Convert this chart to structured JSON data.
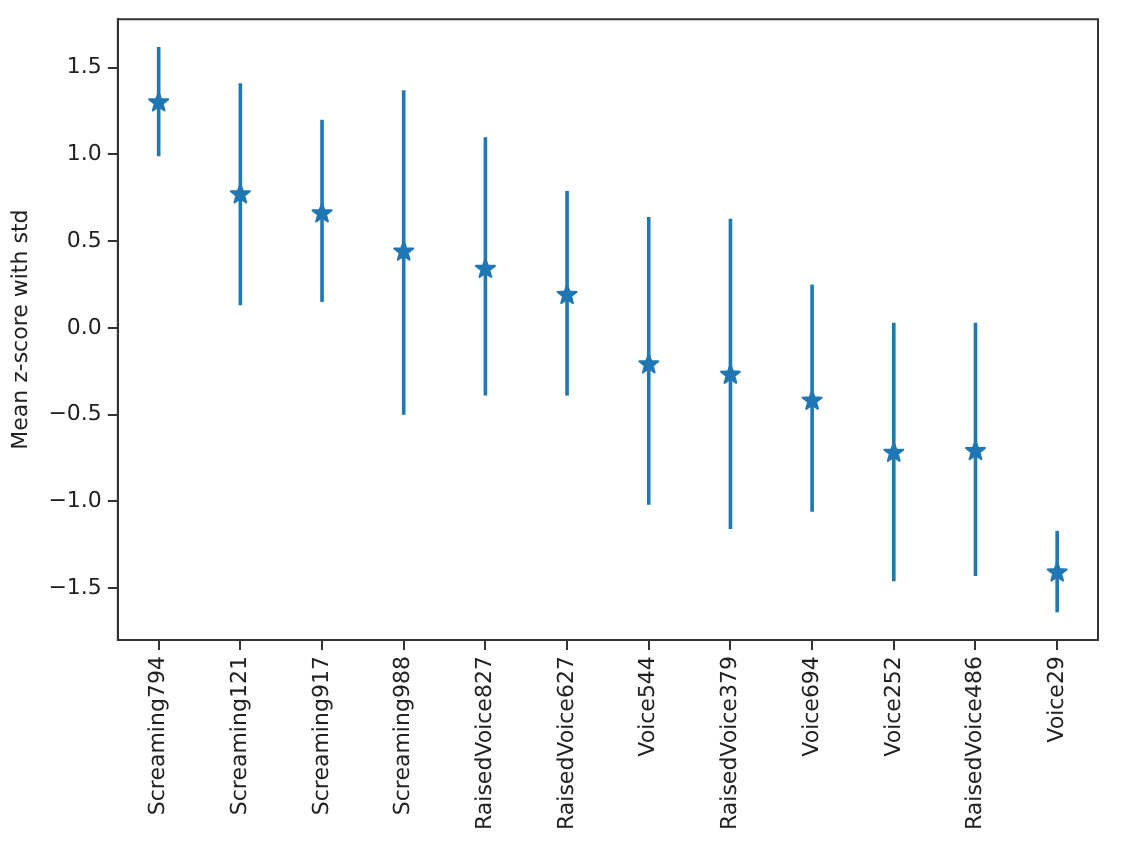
{
  "chart_data": {
    "type": "scatter",
    "ylabel": "Mean z-score with std",
    "categories": [
      "Screaming794",
      "Screaming121",
      "Screaming917",
      "Screaming988",
      "RaisedVoice827",
      "RaisedVoice627",
      "Voice544",
      "RaisedVoice379",
      "Voice694",
      "Voice252",
      "RaisedVoice486",
      "Voice29"
    ],
    "series": [
      {
        "color": "#1f77b4",
        "values": [
          1.3,
          0.77,
          0.66,
          0.44,
          0.34,
          0.19,
          -0.21,
          -0.27,
          -0.42,
          -0.72,
          -0.71,
          -1.41
        ],
        "errors": [
          [
            0.99,
            1.62
          ],
          [
            0.13,
            1.41
          ],
          [
            0.15,
            1.2
          ],
          [
            -0.5,
            1.37
          ],
          [
            -0.39,
            1.1
          ],
          [
            -0.39,
            0.79
          ],
          [
            -1.02,
            0.64
          ],
          [
            -1.16,
            0.63
          ],
          [
            -1.06,
            0.25
          ],
          [
            -1.46,
            0.03
          ],
          [
            -1.43,
            0.03
          ],
          [
            -1.64,
            -1.17
          ]
        ]
      }
    ],
    "ylim": [
      -1.8,
      1.78
    ],
    "yticks": [
      {
        "value": -1.5,
        "label": "−1.5"
      },
      {
        "value": -1.0,
        "label": "−1.0"
      },
      {
        "value": -0.5,
        "label": "−0.5"
      },
      {
        "value": 0.0,
        "label": "0.0"
      },
      0.5,
      {
        "value": 1.0,
        "label": "1.0"
      },
      1.5
    ],
    "grid": false,
    "legend": false,
    "marker": "star",
    "line_style": "none"
  }
}
